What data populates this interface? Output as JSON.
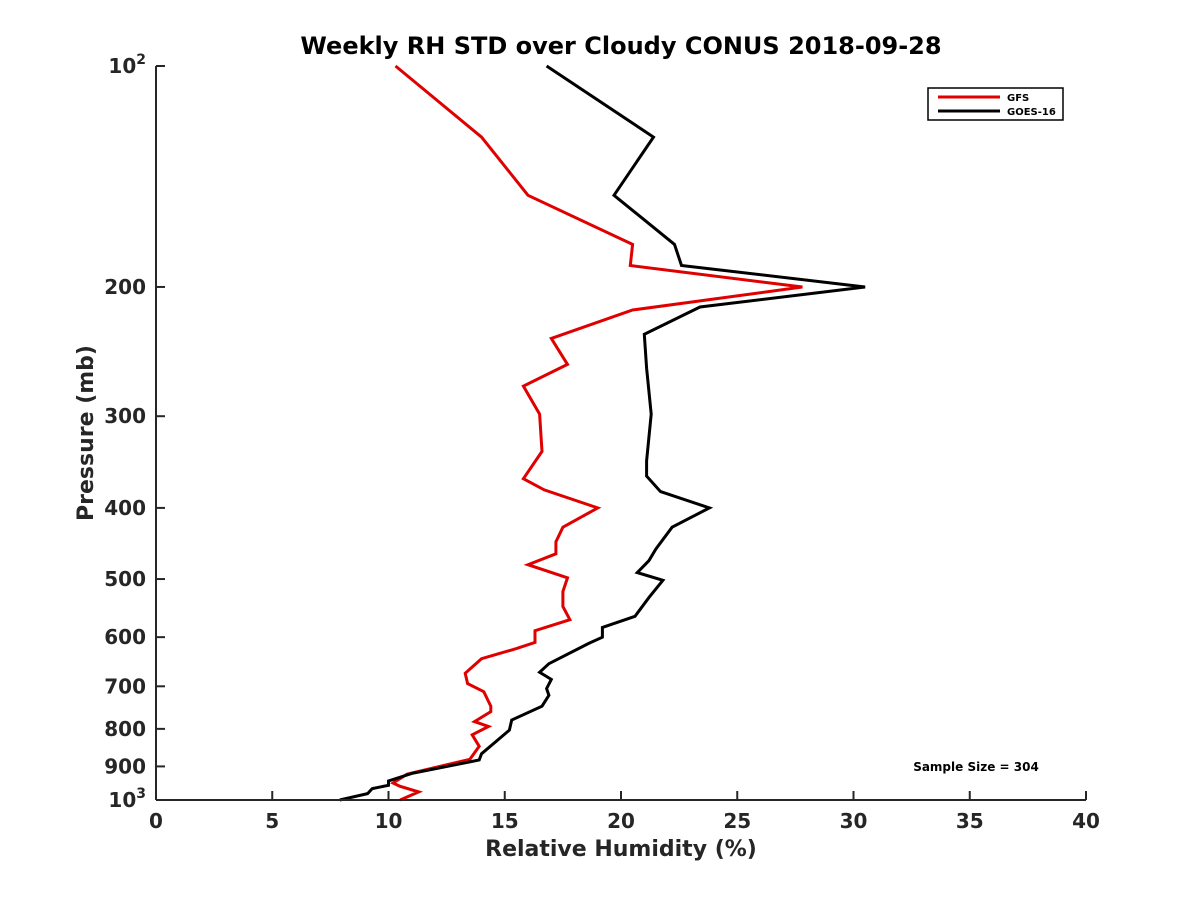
{
  "chart_data": {
    "type": "line",
    "title": "Weekly RH STD over Cloudy CONUS 2018-09-28",
    "xlabel": "Relative Humidity (%)",
    "ylabel": "Pressure (mb)",
    "xlim": [
      0,
      40
    ],
    "ylim": [
      100,
      1000
    ],
    "yscale": "log",
    "y_reversed": true,
    "xticks": [
      0,
      5,
      10,
      15,
      20,
      25,
      30,
      35,
      40
    ],
    "xtick_labels": [
      "0",
      "5",
      "10",
      "15",
      "20",
      "25",
      "30",
      "35",
      "40"
    ],
    "yticks": [
      100,
      200,
      300,
      400,
      500,
      600,
      700,
      800,
      900,
      1000
    ],
    "ytick_labels": [
      {
        "base": "10",
        "exp": "2"
      },
      {
        "base": "200",
        "exp": ""
      },
      {
        "base": "300",
        "exp": ""
      },
      {
        "base": "400",
        "exp": ""
      },
      {
        "base": "500",
        "exp": ""
      },
      {
        "base": "600",
        "exp": ""
      },
      {
        "base": "700",
        "exp": ""
      },
      {
        "base": "800",
        "exp": ""
      },
      {
        "base": "900",
        "exp": ""
      },
      {
        "base": "10",
        "exp": "3"
      }
    ],
    "legend_position": "top-right",
    "annotation": "Sample Size = 304",
    "series": [
      {
        "name": "GFS",
        "color": "#e00000",
        "points": [
          [
            10.3,
            100
          ],
          [
            14.0,
            125
          ],
          [
            16.0,
            150
          ],
          [
            20.5,
            175
          ],
          [
            20.4,
            187
          ],
          [
            27.8,
            200
          ],
          [
            20.5,
            215
          ],
          [
            17.0,
            235
          ],
          [
            17.7,
            255
          ],
          [
            15.8,
            273
          ],
          [
            16.5,
            298
          ],
          [
            16.6,
            335
          ],
          [
            15.8,
            365
          ],
          [
            16.7,
            378
          ],
          [
            19.0,
            400
          ],
          [
            17.5,
            425
          ],
          [
            17.2,
            445
          ],
          [
            17.2,
            462
          ],
          [
            16.0,
            478
          ],
          [
            17.7,
            498
          ],
          [
            17.5,
            520
          ],
          [
            17.5,
            545
          ],
          [
            17.8,
            568
          ],
          [
            16.3,
            588
          ],
          [
            16.3,
            610
          ],
          [
            15.5,
            622
          ],
          [
            14.0,
            642
          ],
          [
            13.3,
            672
          ],
          [
            13.4,
            694
          ],
          [
            14.1,
            712
          ],
          [
            14.4,
            745
          ],
          [
            14.4,
            758
          ],
          [
            13.7,
            782
          ],
          [
            14.3,
            794
          ],
          [
            13.6,
            815
          ],
          [
            13.9,
            845
          ],
          [
            13.5,
            880
          ],
          [
            10.8,
            922
          ],
          [
            10.2,
            948
          ],
          [
            10.5,
            958
          ],
          [
            11.3,
            975
          ],
          [
            10.5,
            1000
          ]
        ]
      },
      {
        "name": "GOES-16",
        "color": "#000000",
        "points": [
          [
            16.8,
            100
          ],
          [
            21.4,
            125
          ],
          [
            19.7,
            150
          ],
          [
            22.3,
            175
          ],
          [
            22.6,
            187
          ],
          [
            30.5,
            200
          ],
          [
            23.4,
            213
          ],
          [
            21.0,
            232
          ],
          [
            21.1,
            258
          ],
          [
            21.3,
            298
          ],
          [
            21.1,
            345
          ],
          [
            21.1,
            362
          ],
          [
            21.7,
            380
          ],
          [
            23.8,
            400
          ],
          [
            22.2,
            425
          ],
          [
            21.5,
            455
          ],
          [
            21.2,
            472
          ],
          [
            20.7,
            490
          ],
          [
            21.8,
            502
          ],
          [
            21.2,
            530
          ],
          [
            20.6,
            562
          ],
          [
            19.2,
            582
          ],
          [
            19.2,
            600
          ],
          [
            18.6,
            612
          ],
          [
            16.9,
            652
          ],
          [
            16.5,
            670
          ],
          [
            17.0,
            685
          ],
          [
            16.8,
            705
          ],
          [
            16.9,
            720
          ],
          [
            16.6,
            745
          ],
          [
            15.3,
            778
          ],
          [
            15.2,
            803
          ],
          [
            14.0,
            865
          ],
          [
            13.9,
            882
          ],
          [
            11.0,
            920
          ],
          [
            10.0,
            942
          ],
          [
            10.0,
            955
          ],
          [
            9.3,
            965
          ],
          [
            9.1,
            980
          ],
          [
            7.9,
            1000
          ]
        ]
      }
    ]
  }
}
